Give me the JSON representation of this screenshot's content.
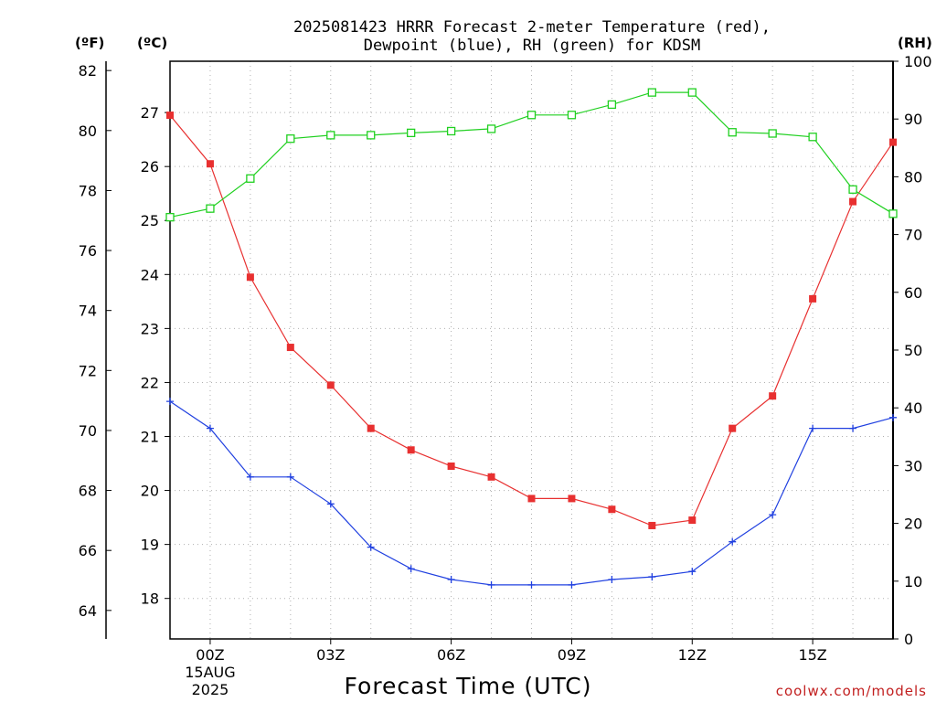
{
  "chart_data": {
    "type": "line",
    "title": "2025081423 HRRR Forecast 2-meter Temperature (red),",
    "subtitle": "Dewpoint (blue), RH (green) for KDSM",
    "xlabel": "Forecast Time (UTC)",
    "credit": "coolwx.com/models",
    "unit_labels": {
      "fahrenheit": "(ºF)",
      "celsius": "(ºC)",
      "rh": "(RH)"
    },
    "x": [
      -1,
      0,
      1,
      2,
      3,
      4,
      5,
      6,
      7,
      8,
      9,
      10,
      11,
      12,
      13,
      14,
      15,
      16,
      17
    ],
    "x_ticks": [
      {
        "x": 0,
        "label": "00Z",
        "sub1": "15AUG",
        "sub2": "2025"
      },
      {
        "x": 3,
        "label": "03Z"
      },
      {
        "x": 6,
        "label": "06Z"
      },
      {
        "x": 9,
        "label": "09Z"
      },
      {
        "x": 12,
        "label": "12Z"
      },
      {
        "x": 15,
        "label": "15Z"
      }
    ],
    "xlim": [
      -1,
      17
    ],
    "celsius_axis": {
      "ylim": [
        17.25,
        27.95
      ],
      "ticks": [
        18,
        19,
        20,
        21,
        22,
        23,
        24,
        25,
        26,
        27
      ]
    },
    "fahrenheit_axis": {
      "ticks": [
        64,
        66,
        68,
        70,
        72,
        74,
        76,
        78,
        80,
        82
      ]
    },
    "rh_axis": {
      "ylim": [
        0,
        100
      ],
      "ticks": [
        0,
        10,
        20,
        30,
        40,
        50,
        60,
        70,
        80,
        90,
        100
      ]
    },
    "grid": true,
    "series": [
      {
        "name": "Temperature",
        "axis": "celsius",
        "color": "#e83030",
        "marker": "filled-square",
        "values": [
          26.95,
          26.05,
          23.95,
          22.65,
          21.95,
          21.15,
          20.75,
          20.45,
          20.25,
          19.85,
          19.85,
          19.65,
          19.35,
          19.45,
          21.15,
          21.75,
          23.55,
          25.35,
          26.45
        ]
      },
      {
        "name": "Dewpoint",
        "axis": "celsius",
        "color": "#2040e0",
        "marker": "plus",
        "values": [
          21.65,
          21.15,
          20.25,
          20.25,
          19.75,
          18.95,
          18.55,
          18.35,
          18.25,
          18.25,
          18.25,
          18.35,
          18.4,
          18.5,
          19.05,
          19.55,
          21.15,
          21.15,
          21.35
        ]
      },
      {
        "name": "RH",
        "axis": "rh",
        "color": "#20d020",
        "marker": "open-square",
        "values": [
          73,
          74.5,
          79.7,
          86.6,
          87.2,
          87.2,
          87.6,
          87.9,
          88.3,
          90.7,
          90.7,
          92.5,
          94.6,
          94.6,
          87.7,
          87.5,
          86.9,
          77.8,
          73.6
        ]
      }
    ]
  }
}
